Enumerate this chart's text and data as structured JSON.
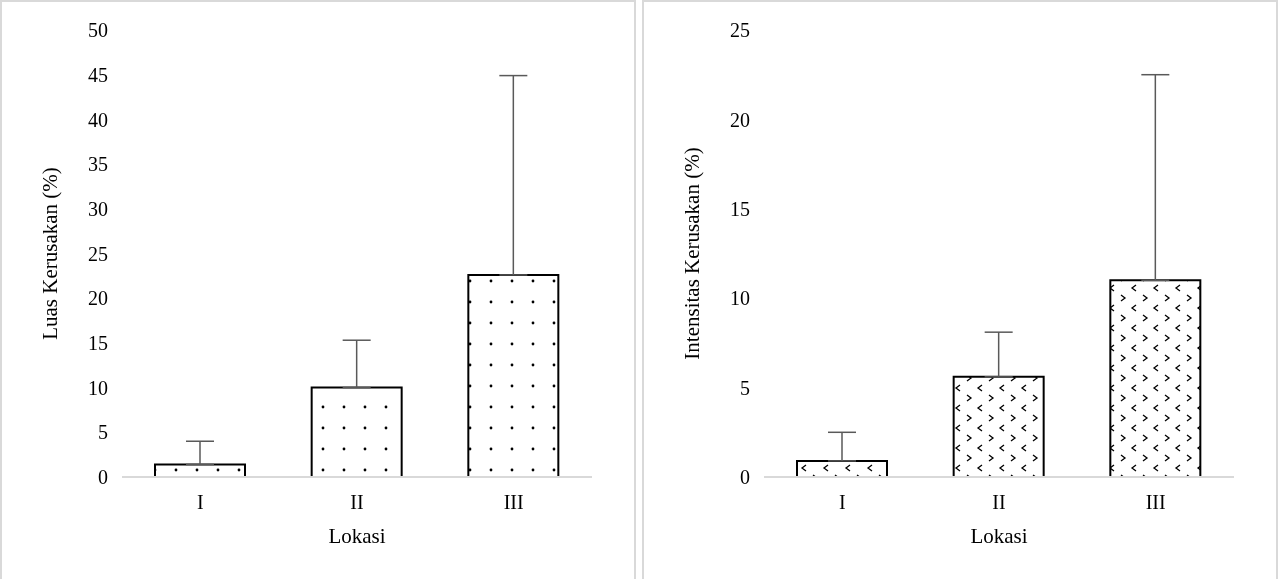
{
  "chart_data": [
    {
      "type": "bar",
      "xlabel": "Lokasi",
      "ylabel": "Luas Kerusakan (%)",
      "categories": [
        "I",
        "II",
        "III"
      ],
      "values": [
        1.4,
        10.0,
        22.6
      ],
      "errors": [
        [
          1.4,
          4.0
        ],
        [
          10.0,
          15.3
        ],
        [
          22.6,
          44.9
        ]
      ],
      "color": "#000000",
      "ylim": [
        0,
        50
      ],
      "yticks": [
        0,
        5,
        10,
        15,
        20,
        25,
        30,
        35,
        40,
        45,
        50
      ],
      "grid": false,
      "legend": false
    },
    {
      "type": "bar",
      "xlabel": "Lokasi",
      "ylabel": "Intensitas Kerusakan (%)",
      "categories": [
        "I",
        "II",
        "III"
      ],
      "values": [
        0.9,
        5.6,
        11.0
      ],
      "errors": [
        [
          0.9,
          2.5
        ],
        [
          5.6,
          8.1
        ],
        [
          11.0,
          22.5
        ]
      ],
      "color": "#000000",
      "ylim": [
        0,
        25
      ],
      "yticks": [
        0,
        5,
        10,
        15,
        20,
        25
      ],
      "grid": false,
      "legend": false
    }
  ]
}
